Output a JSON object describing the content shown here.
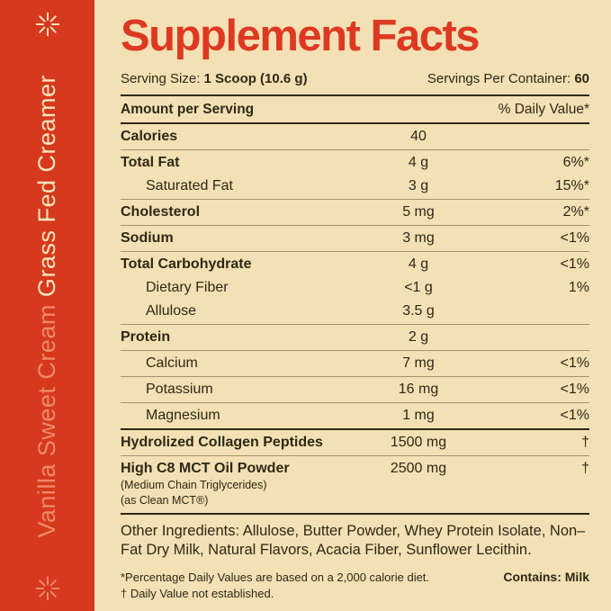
{
  "theme": {
    "red_sidebar": "#D6391E",
    "red_title": "#DD3922",
    "cream_bg": "#F3E0B4",
    "cream_text": "#F6E4BA",
    "salmon_text": "#EF8A67",
    "ink": "#2E2915",
    "line_soft": "rgba(62,52,25,0.45)",
    "line_strong": "#2E2710"
  },
  "sidebar": {
    "top_icon": "starburst-asterisk",
    "bottom_icon": "starburst-asterisk",
    "product_line1": "Vanilla Sweet Cream ",
    "product_line2": "Grass Fed Creamer"
  },
  "panel": {
    "title": "Supplement Facts",
    "serving_size": {
      "label": "Serving Size:",
      "value": "1 Scoop (10.6 g)"
    },
    "servings_per_container": {
      "label": "Servings Per Container:",
      "value": "60"
    },
    "header": {
      "left": "Amount per Serving",
      "right": "% Daily Value*"
    },
    "rows": [
      {
        "name": "Calories",
        "amount": "40",
        "dv": "",
        "bold": true,
        "indent": false,
        "divider": "thin"
      },
      {
        "name": "Total Fat",
        "amount": "4 g",
        "dv": "6%*",
        "bold": true,
        "indent": false,
        "divider": "none"
      },
      {
        "name": "Saturated Fat",
        "amount": "3 g",
        "dv": "15%*",
        "bold": false,
        "indent": true,
        "divider": "thin"
      },
      {
        "name": "Cholesterol",
        "amount": "5 mg",
        "dv": "2%*",
        "bold": true,
        "indent": false,
        "divider": "thin"
      },
      {
        "name": "Sodium",
        "amount": "3 mg",
        "dv": "<1%",
        "bold": true,
        "indent": false,
        "divider": "thin"
      },
      {
        "name": "Total Carbohydrate",
        "amount": "4 g",
        "dv": "<1%",
        "bold": true,
        "indent": false,
        "divider": "none"
      },
      {
        "name": "Dietary Fiber",
        "amount": "<1 g",
        "dv": "1%",
        "bold": false,
        "indent": true,
        "divider": "none"
      },
      {
        "name": "Allulose",
        "amount": "3.5 g",
        "dv": "",
        "bold": false,
        "indent": true,
        "divider": "thin"
      },
      {
        "name": "Protein",
        "amount": "2 g",
        "dv": "",
        "bold": true,
        "indent": false,
        "divider": "thin"
      },
      {
        "name": "Calcium",
        "amount": "7 mg",
        "dv": "<1%",
        "bold": false,
        "indent": true,
        "divider": "thin"
      },
      {
        "name": "Potassium",
        "amount": "16 mg",
        "dv": "<1%",
        "bold": false,
        "indent": true,
        "divider": "thin"
      },
      {
        "name": "Magnesium",
        "amount": "1 mg",
        "dv": "<1%",
        "bold": false,
        "indent": true,
        "divider": "thick"
      },
      {
        "name": "Hydrolized Collagen Peptides",
        "amount": "1500 mg",
        "dv": "†",
        "bold": true,
        "indent": false,
        "divider": "thin"
      },
      {
        "name": "High C8 MCT Oil Powder",
        "amount": "2500 mg",
        "dv": "†",
        "bold": true,
        "indent": false,
        "subnotes": [
          "(Medium Chain Triglycerides)",
          "(as Clean MCT®)"
        ],
        "divider": "thick"
      }
    ],
    "other_ingredients": "Other Ingredients: Allulose, Butter Powder, Whey Protein Isolate, Non–Fat Dry Milk, Natural Flavors, Acacia Fiber, Sunflower Lecithin.",
    "footnote1": "*Percentage Daily Values are based on a 2,000 calorie diet.",
    "footnote2": "† Daily Value not established.",
    "contains": "Contains: Milk"
  }
}
